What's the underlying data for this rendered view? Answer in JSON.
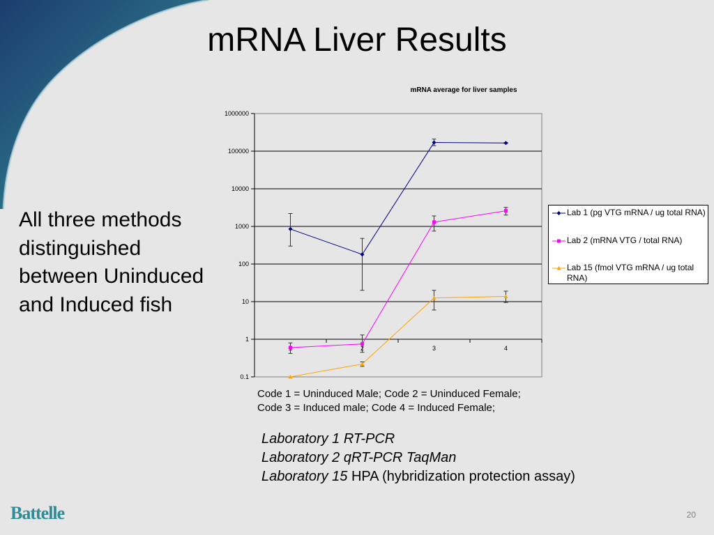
{
  "slide": {
    "title": "mRNA Liver Results",
    "side_text": "All three methods distinguished between Uninduced and Induced fish",
    "code_note": {
      "line1": "Code 1 = Uninduced Male;  Code 2 = Uninduced Female;",
      "line2": "Code 3 = Induced male; Code 4 = Induced Female;"
    },
    "labs": [
      {
        "italic": "Laboratory 1 RT-PCR",
        "plain": ""
      },
      {
        "italic": "Laboratory 2 qRT-PCR TaqMan",
        "plain": ""
      },
      {
        "italic": "Laboratory 15",
        "plain": " HPA (hybridization protection assay)"
      }
    ],
    "logo": "Battelle",
    "page_number": "20",
    "colors": {
      "background": "#e6e6e6",
      "swoosh_dark": "#1c3d6e",
      "swoosh_light": "#2f8c94",
      "logo": "#2f8c94"
    }
  },
  "chart_data": {
    "type": "line",
    "title": "mRNA average for liver samples",
    "xlabel": "",
    "ylabel": "",
    "y_scale": "log",
    "ylim": [
      0.1,
      1000000
    ],
    "y_ticks": [
      "0.1",
      "1",
      "10",
      "100",
      "1000",
      "10000",
      "100000",
      "1000000"
    ],
    "categories": [
      "1",
      "2",
      "3",
      "4"
    ],
    "x_tick_labels": [
      "1",
      "2",
      "3",
      "4"
    ],
    "grid": true,
    "legend_position": "right",
    "series": [
      {
        "name": "Lab 1 (pg VTG mRNA / ug total RNA)",
        "color": "#000080",
        "marker": "diamond",
        "values": [
          850,
          180,
          170000,
          165000
        ],
        "error_low": [
          300,
          20,
          140000,
          160000
        ],
        "error_high": [
          2200,
          480,
          210000,
          170000
        ]
      },
      {
        "name": "Lab 2 (mRNA VTG / total RNA)",
        "color": "#ff00ff",
        "marker": "square",
        "values": [
          0.6,
          0.75,
          1300,
          2600
        ],
        "error_low": [
          0.42,
          0.45,
          750,
          2000
        ],
        "error_high": [
          0.8,
          1.3,
          1900,
          3200
        ]
      },
      {
        "name": "Lab 15 (fmol VTG mRNA / ug total RNA)",
        "color": "#ffa500",
        "marker": "triangle",
        "values": [
          0.1,
          0.22,
          12.5,
          13.8
        ],
        "error_low": [
          0.1,
          0.19,
          6,
          9.5
        ],
        "error_high": [
          0.1,
          0.25,
          20,
          19
        ]
      }
    ]
  }
}
